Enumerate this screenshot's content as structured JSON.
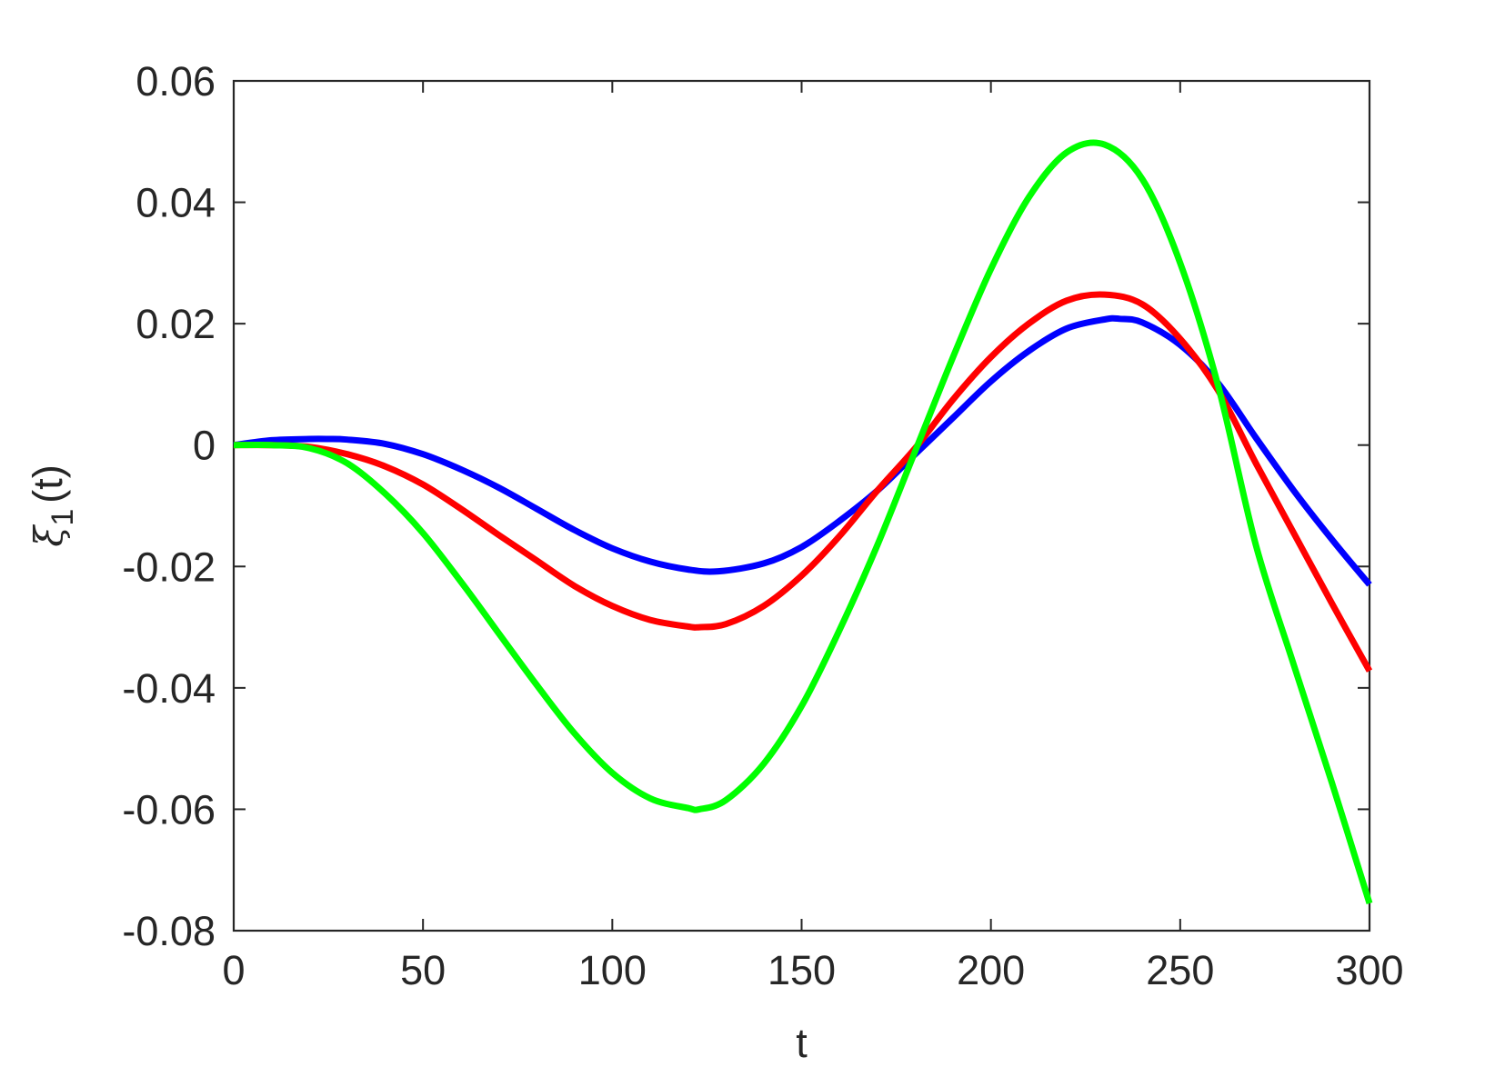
{
  "chart_data": {
    "type": "line",
    "xlabel": "t",
    "ylabel": {
      "symbol": "ξ",
      "subscript": "1",
      "suffix": "(t)"
    },
    "xlim": [
      0,
      300
    ],
    "ylim": [
      -0.08,
      0.06
    ],
    "xticks": [
      0,
      50,
      100,
      150,
      200,
      250,
      300
    ],
    "yticks": [
      -0.08,
      -0.06,
      -0.04,
      -0.02,
      0,
      0.02,
      0.04,
      0.06
    ],
    "xtick_labels": [
      "0",
      "50",
      "100",
      "150",
      "200",
      "250",
      "300"
    ],
    "ytick_labels": [
      "-0.08",
      "-0.06",
      "-0.04",
      "-0.02",
      "0",
      "0.02",
      "0.04",
      "0.06"
    ],
    "grid": false,
    "series": [
      {
        "color": "#0000ff",
        "x": [
          0,
          10,
          20,
          25,
          30,
          40,
          50,
          60,
          70,
          80,
          90,
          100,
          110,
          120,
          128,
          140,
          150,
          160,
          170,
          180,
          190,
          200,
          210,
          220,
          230,
          234,
          240,
          250,
          260,
          270,
          280,
          290,
          300
        ],
        "y": [
          0,
          0.0008,
          0.001,
          0.001,
          0.0009,
          0.0002,
          -0.0015,
          -0.004,
          -0.007,
          -0.0105,
          -0.014,
          -0.017,
          -0.0192,
          -0.0205,
          -0.0208,
          -0.0195,
          -0.0168,
          -0.0125,
          -0.0075,
          -0.0015,
          0.0045,
          0.0105,
          0.0155,
          0.0192,
          0.0207,
          0.0208,
          0.0202,
          0.0165,
          0.0102,
          0.0012,
          -0.0075,
          -0.0155,
          -0.023
        ]
      },
      {
        "color": "#ff0000",
        "x": [
          0,
          10,
          20,
          30,
          40,
          50,
          60,
          70,
          80,
          90,
          100,
          110,
          120,
          123,
          130,
          140,
          150,
          160,
          170,
          180,
          190,
          200,
          210,
          220,
          230,
          240,
          250,
          260,
          270,
          280,
          290,
          300
        ],
        "y": [
          0,
          0,
          -0.0003,
          -0.0015,
          -0.0035,
          -0.0065,
          -0.0105,
          -0.0148,
          -0.019,
          -0.0232,
          -0.0265,
          -0.0288,
          -0.0299,
          -0.03,
          -0.0295,
          -0.0265,
          -0.0215,
          -0.015,
          -0.0075,
          -0.0005,
          0.0075,
          0.0145,
          0.02,
          0.0238,
          0.0248,
          0.0232,
          0.0175,
          0.009,
          -0.003,
          -0.0145,
          -0.026,
          -0.0372
        ]
      },
      {
        "color": "#00ff00",
        "x": [
          0,
          10,
          20,
          30,
          40,
          50,
          60,
          70,
          80,
          90,
          100,
          110,
          120,
          123,
          130,
          140,
          150,
          160,
          170,
          180,
          190,
          200,
          210,
          220,
          230,
          240,
          250,
          260,
          270,
          280,
          290,
          300
        ],
        "y": [
          0,
          0,
          -0.0005,
          -0.003,
          -0.008,
          -0.0145,
          -0.0225,
          -0.031,
          -0.0395,
          -0.0475,
          -0.054,
          -0.0582,
          -0.0598,
          -0.06,
          -0.0585,
          -0.0525,
          -0.043,
          -0.0305,
          -0.0165,
          -0.001,
          0.0145,
          0.029,
          0.0408,
          0.0482,
          0.0495,
          0.0438,
          0.03,
          0.0098,
          -0.0165,
          -0.0362,
          -0.0555,
          -0.0755
        ]
      }
    ]
  }
}
